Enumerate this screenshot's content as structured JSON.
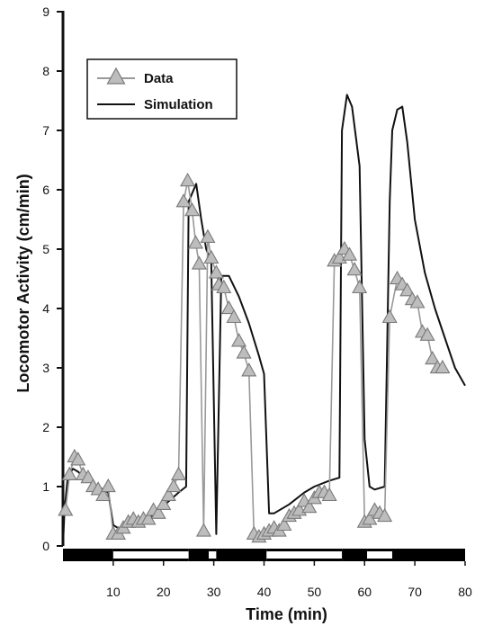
{
  "chart_data": {
    "type": "line",
    "xlabel": "Time (min)",
    "ylabel": "Locomotor Activity (cm/min)",
    "xlim": [
      0,
      80
    ],
    "ylim": [
      -0.5,
      9
    ],
    "xticks": [
      "10",
      "20",
      "30",
      "40",
      "50",
      "60",
      "70",
      "80"
    ],
    "yticks": [
      "0",
      "1",
      "2",
      "3",
      "4",
      "5",
      "6",
      "7",
      "8",
      "9"
    ],
    "grid": false,
    "legend_position": "top-left",
    "legend": [
      "Data",
      "Simulation"
    ],
    "series": [
      {
        "name": "Data",
        "color": "#999999",
        "marker": "triangle",
        "x": [
          0.5,
          1.3,
          2.3,
          3.0,
          4.0,
          5.0,
          6.0,
          7.0,
          8.0,
          9.0,
          10.0,
          11.0,
          12.0,
          13.0,
          14.0,
          15.0,
          16.0,
          17.0,
          18.0,
          19.0,
          20.0,
          21.0,
          22.0,
          23.0,
          24.0,
          24.8,
          25.7,
          26.4,
          27.1,
          28.0,
          28.8,
          29.5,
          30.5,
          31.0,
          32.0,
          33.0,
          34.0,
          35.0,
          36.0,
          37.0,
          38.0,
          39.0,
          40.0,
          41.0,
          42.0,
          43.0,
          44.0,
          45.0,
          46.0,
          47.0,
          48.0,
          49.0,
          50.0,
          51.0,
          52.0,
          53.0,
          54.0,
          55.0,
          56.0,
          57.0,
          58.0,
          59.0,
          60.0,
          61.0,
          62.0,
          63.0,
          64.0,
          65.0,
          66.5,
          67.5,
          68.5,
          69.5,
          70.5,
          71.5,
          72.5,
          73.5,
          74.5,
          75.5
        ],
        "y": [
          0.6,
          1.2,
          1.5,
          1.45,
          1.2,
          1.15,
          1.0,
          0.95,
          0.85,
          1.0,
          0.2,
          0.2,
          0.3,
          0.4,
          0.45,
          0.4,
          0.45,
          0.45,
          0.6,
          0.55,
          0.7,
          0.85,
          1.0,
          1.2,
          5.8,
          6.15,
          5.65,
          5.1,
          4.75,
          0.25,
          5.2,
          4.85,
          4.6,
          4.4,
          4.35,
          4.0,
          3.85,
          3.45,
          3.25,
          2.95,
          0.2,
          0.15,
          0.2,
          0.25,
          0.3,
          0.25,
          0.35,
          0.5,
          0.55,
          0.6,
          0.75,
          0.65,
          0.8,
          0.9,
          0.9,
          0.85,
          4.8,
          4.85,
          5.0,
          4.9,
          4.65,
          4.35,
          0.4,
          0.45,
          0.6,
          0.55,
          0.5,
          3.85,
          4.5,
          4.4,
          4.3,
          4.15,
          4.1,
          3.6,
          3.55,
          3.15,
          3.0,
          3.0
        ]
      },
      {
        "name": "Simulation",
        "color": "#111111",
        "marker": "none",
        "x": [
          0,
          0.3,
          1,
          2,
          3,
          5,
          7,
          9,
          10,
          11,
          13,
          15,
          17,
          19,
          21,
          23,
          24.5,
          25,
          26.5,
          27.5,
          28.5,
          29.5,
          30.5,
          31.5,
          33,
          35,
          37,
          39,
          40,
          41,
          42,
          45,
          48,
          50,
          53,
          55,
          55.5,
          56.5,
          57.5,
          59,
          60,
          61,
          62,
          64,
          65,
          65.5,
          66.5,
          67.5,
          68.5,
          70,
          72,
          74,
          76,
          78,
          80
        ],
        "y": [
          0.0,
          0.6,
          1.2,
          1.3,
          1.25,
          1.1,
          1.0,
          0.9,
          0.35,
          0.3,
          0.35,
          0.4,
          0.45,
          0.6,
          0.75,
          0.9,
          1.0,
          5.8,
          6.1,
          5.5,
          5.0,
          4.8,
          0.2,
          4.55,
          4.55,
          4.2,
          3.75,
          3.2,
          2.9,
          0.55,
          0.55,
          0.7,
          0.9,
          1.0,
          1.1,
          1.15,
          7.0,
          7.6,
          7.4,
          6.4,
          1.8,
          1.0,
          0.95,
          1.0,
          5.8,
          7.0,
          7.35,
          7.4,
          6.8,
          5.5,
          4.6,
          4.0,
          3.5,
          3.0,
          2.7
        ]
      }
    ],
    "light_bar": {
      "segments": [
        {
          "start": 0,
          "end": 10,
          "state": "dark"
        },
        {
          "start": 10,
          "end": 25,
          "state": "light"
        },
        {
          "start": 25,
          "end": 29,
          "state": "dark"
        },
        {
          "start": 29,
          "end": 30.5,
          "state": "light"
        },
        {
          "start": 30.5,
          "end": 40.5,
          "state": "dark"
        },
        {
          "start": 40.5,
          "end": 55.5,
          "state": "light"
        },
        {
          "start": 55.5,
          "end": 60.5,
          "state": "dark"
        },
        {
          "start": 60.5,
          "end": 65.5,
          "state": "light"
        },
        {
          "start": 65.5,
          "end": 80,
          "state": "dark"
        }
      ]
    }
  }
}
